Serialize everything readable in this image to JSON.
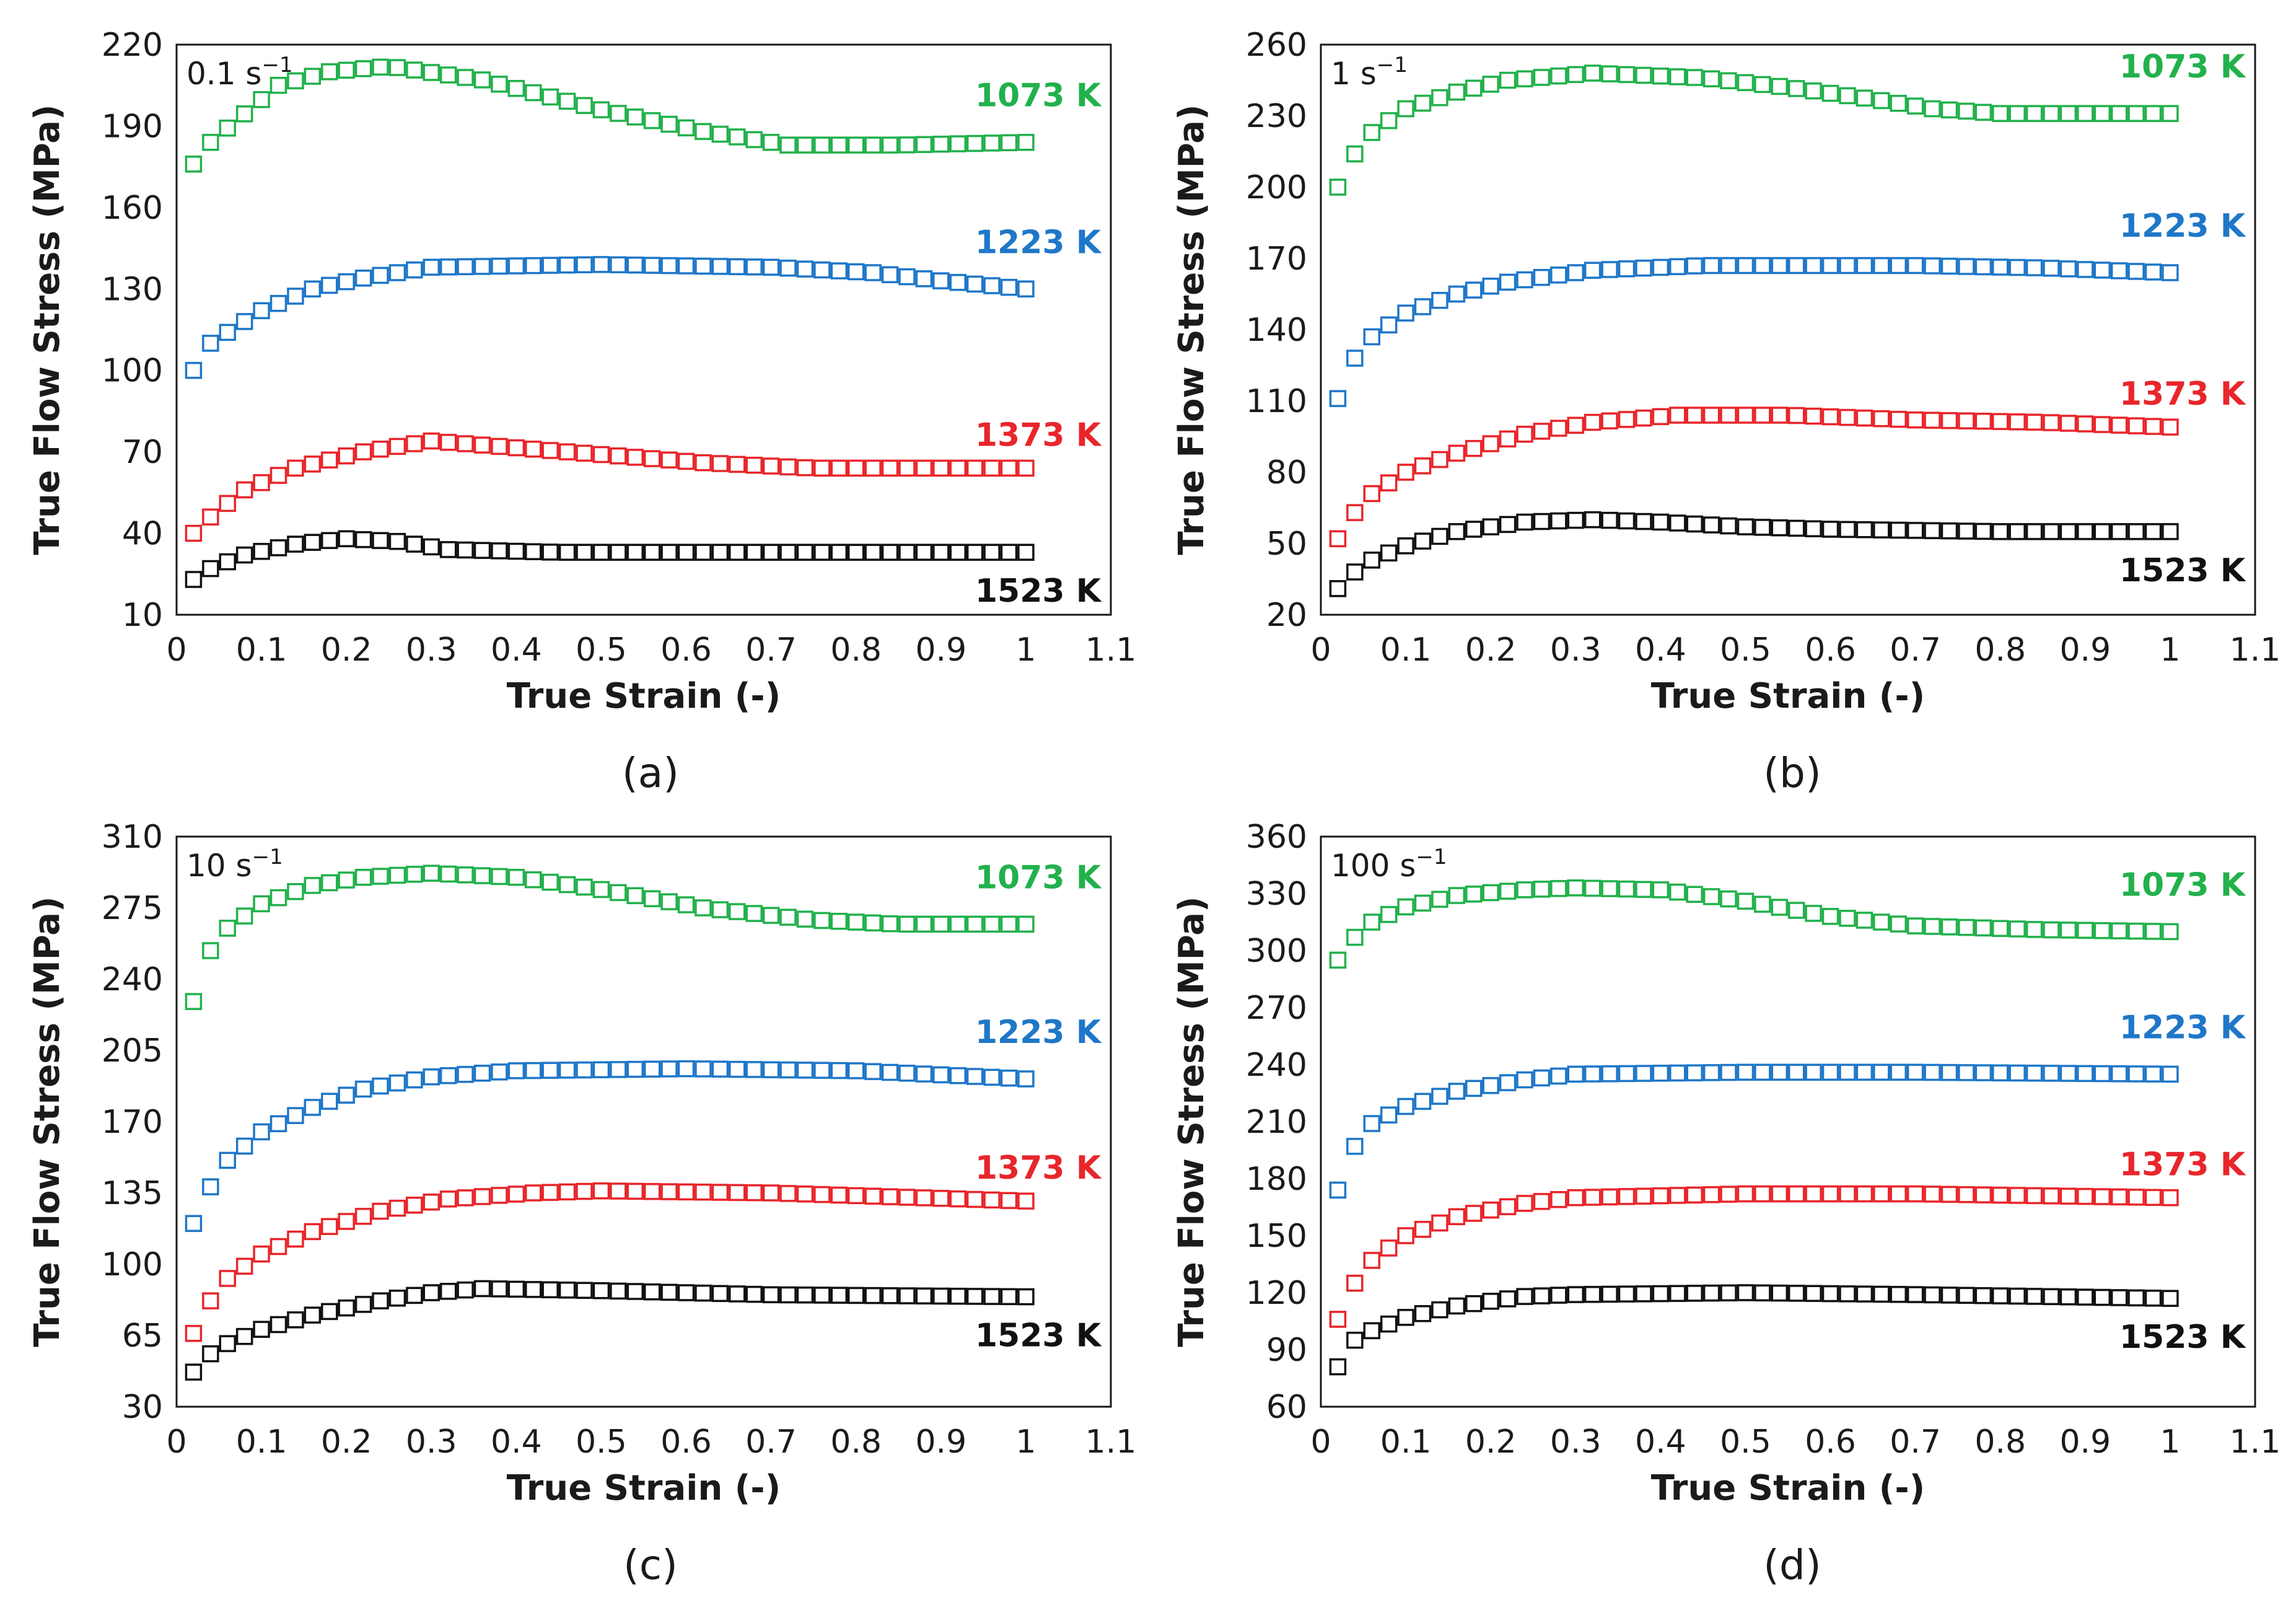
{
  "chart_data": [
    {
      "type": "scatter",
      "panel_label": "(a)",
      "rate_value": "0.1 s",
      "rate_exp": "−1",
      "xlabel": "True Strain (-)",
      "ylabel": "True Flow Stress (MPa)",
      "xlim": [
        0,
        1.1
      ],
      "ylim": [
        10,
        220
      ],
      "xticks": [
        "0",
        "0.1",
        "0.2",
        "0.3",
        "0.4",
        "0.5",
        "0.6",
        "0.7",
        "0.8",
        "0.9",
        "1",
        "1.1"
      ],
      "yticks": [
        "10",
        "40",
        "70",
        "100",
        "130",
        "160",
        "190",
        "220"
      ],
      "series": [
        {
          "name": "1073 K",
          "color": "#22b14c",
          "keys": [
            [
              0.02,
              176
            ],
            [
              0.04,
              184
            ],
            [
              0.12,
              205
            ],
            [
              0.18,
              210
            ],
            [
              0.25,
              212
            ],
            [
              0.36,
              207
            ],
            [
              0.5,
              196
            ],
            [
              0.62,
              188
            ],
            [
              0.72,
              183
            ],
            [
              0.85,
              183
            ],
            [
              1.0,
              184
            ]
          ]
        },
        {
          "name": "1223 K",
          "color": "#1f77c8",
          "keys": [
            [
              0.02,
              100
            ],
            [
              0.04,
              110
            ],
            [
              0.1,
              122
            ],
            [
              0.16,
              130
            ],
            [
              0.22,
              134
            ],
            [
              0.3,
              138
            ],
            [
              0.5,
              139
            ],
            [
              0.7,
              138
            ],
            [
              0.82,
              136
            ],
            [
              0.9,
              133
            ],
            [
              1.0,
              130
            ]
          ]
        },
        {
          "name": "1373 K",
          "color": "#e8262b",
          "keys": [
            [
              0.02,
              40
            ],
            [
              0.04,
              46
            ],
            [
              0.08,
              56
            ],
            [
              0.14,
              64
            ],
            [
              0.22,
              70
            ],
            [
              0.3,
              74
            ],
            [
              0.38,
              72
            ],
            [
              0.5,
              69
            ],
            [
              0.62,
              66
            ],
            [
              0.75,
              64
            ],
            [
              1.0,
              64
            ]
          ]
        },
        {
          "name": "1523 K",
          "color": "#111111",
          "keys": [
            [
              0.02,
              23
            ],
            [
              0.04,
              27
            ],
            [
              0.08,
              32
            ],
            [
              0.14,
              36
            ],
            [
              0.2,
              38
            ],
            [
              0.26,
              37
            ],
            [
              0.32,
              34
            ],
            [
              0.45,
              33
            ],
            [
              1.0,
              33
            ]
          ]
        }
      ]
    },
    {
      "type": "scatter",
      "panel_label": "(b)",
      "rate_value": "1 s",
      "rate_exp": "−1",
      "xlabel": "True Strain (-)",
      "ylabel": "True Flow Stress (MPa)",
      "xlim": [
        0,
        1.1
      ],
      "ylim": [
        20,
        260
      ],
      "xticks": [
        "0",
        "0.1",
        "0.2",
        "0.3",
        "0.4",
        "0.5",
        "0.6",
        "0.7",
        "0.8",
        "0.9",
        "1",
        "1.1"
      ],
      "yticks": [
        "20",
        "50",
        "80",
        "110",
        "140",
        "170",
        "200",
        "230",
        "260"
      ],
      "series": [
        {
          "name": "1073 K",
          "color": "#22b14c",
          "keys": [
            [
              0.02,
              200
            ],
            [
              0.04,
              214
            ],
            [
              0.06,
              223
            ],
            [
              0.1,
              233
            ],
            [
              0.16,
              240
            ],
            [
              0.22,
              245
            ],
            [
              0.32,
              248
            ],
            [
              0.45,
              246
            ],
            [
              0.55,
              242
            ],
            [
              0.65,
              237
            ],
            [
              0.72,
              233
            ],
            [
              0.8,
              231
            ],
            [
              1.0,
              231
            ]
          ]
        },
        {
          "name": "1223 K",
          "color": "#1f77c8",
          "keys": [
            [
              0.02,
              111
            ],
            [
              0.04,
              128
            ],
            [
              0.06,
              137
            ],
            [
              0.1,
              147
            ],
            [
              0.16,
              155
            ],
            [
              0.22,
              160
            ],
            [
              0.32,
              165
            ],
            [
              0.45,
              167
            ],
            [
              0.7,
              167
            ],
            [
              0.85,
              166
            ],
            [
              1.0,
              164
            ]
          ]
        },
        {
          "name": "1373 K",
          "color": "#e8262b",
          "keys": [
            [
              0.02,
              52
            ],
            [
              0.04,
              63
            ],
            [
              0.06,
              71
            ],
            [
              0.1,
              80
            ],
            [
              0.16,
              88
            ],
            [
              0.24,
              96
            ],
            [
              0.32,
              101
            ],
            [
              0.42,
              104
            ],
            [
              0.55,
              104
            ],
            [
              0.7,
              102
            ],
            [
              0.85,
              101
            ],
            [
              1.0,
              99
            ]
          ]
        },
        {
          "name": "1523 K",
          "color": "#111111",
          "keys": [
            [
              0.02,
              31
            ],
            [
              0.04,
              38
            ],
            [
              0.06,
              43
            ],
            [
              0.1,
              49
            ],
            [
              0.16,
              55
            ],
            [
              0.24,
              59
            ],
            [
              0.32,
              60
            ],
            [
              0.4,
              59
            ],
            [
              0.5,
              57
            ],
            [
              0.6,
              56
            ],
            [
              0.8,
              55
            ],
            [
              1.0,
              55
            ]
          ]
        }
      ]
    },
    {
      "type": "scatter",
      "panel_label": "(c)",
      "rate_value": "10 s",
      "rate_exp": "−1",
      "xlabel": "True Strain (-)",
      "ylabel": "True Flow Stress (MPa)",
      "xlim": [
        0,
        1.1
      ],
      "ylim": [
        30,
        310
      ],
      "xticks": [
        "0",
        "0.1",
        "0.2",
        "0.3",
        "0.4",
        "0.5",
        "0.6",
        "0.7",
        "0.8",
        "0.9",
        "1",
        "1.1"
      ],
      "yticks": [
        "30",
        "65",
        "100",
        "135",
        "170",
        "205",
        "240",
        "275",
        "310"
      ],
      "series": [
        {
          "name": "1073 K",
          "color": "#22b14c",
          "keys": [
            [
              0.02,
              229
            ],
            [
              0.04,
              254
            ],
            [
              0.06,
              265
            ],
            [
              0.1,
              277
            ],
            [
              0.16,
              286
            ],
            [
              0.22,
              290
            ],
            [
              0.3,
              292
            ],
            [
              0.4,
              290
            ],
            [
              0.5,
              284
            ],
            [
              0.62,
              275
            ],
            [
              0.75,
              269
            ],
            [
              0.85,
              267
            ],
            [
              1.0,
              267
            ]
          ]
        },
        {
          "name": "1223 K",
          "color": "#1f77c8",
          "keys": [
            [
              0.02,
              120
            ],
            [
              0.04,
              138
            ],
            [
              0.06,
              151
            ],
            [
              0.1,
              165
            ],
            [
              0.16,
              177
            ],
            [
              0.22,
              186
            ],
            [
              0.3,
              192
            ],
            [
              0.4,
              195
            ],
            [
              0.6,
              196
            ],
            [
              0.8,
              195
            ],
            [
              0.9,
              193
            ],
            [
              1.0,
              191
            ]
          ]
        },
        {
          "name": "1373 K",
          "color": "#e8262b",
          "keys": [
            [
              0.02,
              66
            ],
            [
              0.04,
              82
            ],
            [
              0.06,
              93
            ],
            [
              0.1,
              105
            ],
            [
              0.16,
              116
            ],
            [
              0.24,
              126
            ],
            [
              0.32,
              132
            ],
            [
              0.42,
              135
            ],
            [
              0.5,
              136
            ],
            [
              0.7,
              135
            ],
            [
              0.85,
              133
            ],
            [
              1.0,
              131
            ]
          ]
        },
        {
          "name": "1523 K",
          "color": "#111111",
          "keys": [
            [
              0.02,
              47
            ],
            [
              0.04,
              56
            ],
            [
              0.06,
              61
            ],
            [
              0.1,
              68
            ],
            [
              0.16,
              75
            ],
            [
              0.24,
              82
            ],
            [
              0.3,
              86
            ],
            [
              0.36,
              88
            ],
            [
              0.5,
              87
            ],
            [
              0.7,
              85
            ],
            [
              1.0,
              84
            ]
          ]
        }
      ]
    },
    {
      "type": "scatter",
      "panel_label": "(d)",
      "rate_value": "100 s",
      "rate_exp": "−1",
      "xlabel": "True Strain (-)",
      "ylabel": "True Flow Stress (MPa)",
      "xlim": [
        0,
        1.1
      ],
      "ylim": [
        60,
        360
      ],
      "xticks": [
        "0",
        "0.1",
        "0.2",
        "0.3",
        "0.4",
        "0.5",
        "0.6",
        "0.7",
        "0.8",
        "0.9",
        "1",
        "1.1"
      ],
      "yticks": [
        "60",
        "90",
        "120",
        "150",
        "180",
        "210",
        "240",
        "270",
        "300",
        "330",
        "360"
      ],
      "series": [
        {
          "name": "1073 K",
          "color": "#22b14c",
          "keys": [
            [
              0.02,
              295
            ],
            [
              0.04,
              307
            ],
            [
              0.06,
              315
            ],
            [
              0.1,
              323
            ],
            [
              0.16,
              329
            ],
            [
              0.24,
              332
            ],
            [
              0.3,
              333
            ],
            [
              0.4,
              332
            ],
            [
              0.5,
              326
            ],
            [
              0.6,
              318
            ],
            [
              0.7,
              313
            ],
            [
              0.85,
              311
            ],
            [
              1.0,
              310
            ]
          ]
        },
        {
          "name": "1223 K",
          "color": "#1f77c8",
          "keys": [
            [
              0.02,
              174
            ],
            [
              0.04,
              197
            ],
            [
              0.06,
              209
            ],
            [
              0.1,
              218
            ],
            [
              0.16,
              226
            ],
            [
              0.24,
              232
            ],
            [
              0.3,
              235
            ],
            [
              0.5,
              236
            ],
            [
              0.7,
              236
            ],
            [
              1.0,
              235
            ]
          ]
        },
        {
          "name": "1373 K",
          "color": "#e8262b",
          "keys": [
            [
              0.02,
              106
            ],
            [
              0.04,
              125
            ],
            [
              0.06,
              137
            ],
            [
              0.1,
              150
            ],
            [
              0.16,
              160
            ],
            [
              0.24,
              167
            ],
            [
              0.3,
              170
            ],
            [
              0.5,
              172
            ],
            [
              0.7,
              172
            ],
            [
              1.0,
              170
            ]
          ]
        },
        {
          "name": "1523 K",
          "color": "#111111",
          "keys": [
            [
              0.02,
              81
            ],
            [
              0.04,
              95
            ],
            [
              0.06,
              100
            ],
            [
              0.1,
              107
            ],
            [
              0.16,
              113
            ],
            [
              0.24,
              118
            ],
            [
              0.3,
              119
            ],
            [
              0.5,
              120
            ],
            [
              0.7,
              119
            ],
            [
              1.0,
              117
            ]
          ]
        }
      ]
    }
  ]
}
